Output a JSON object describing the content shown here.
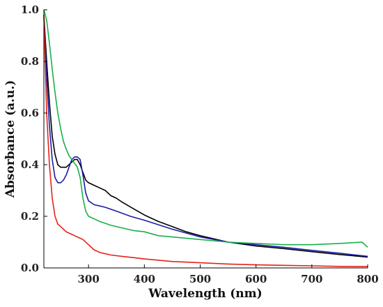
{
  "chart_data": {
    "type": "line",
    "title": "",
    "xlabel": "Wavelength (nm)",
    "ylabel": "Absorbance (a.u.)",
    "xlim": [
      220,
      800
    ],
    "ylim": [
      0,
      1.0
    ],
    "xticks": [
      300,
      400,
      500,
      600,
      700,
      800
    ],
    "yticks": [
      0.0,
      0.2,
      0.4,
      0.6,
      0.8,
      1.0
    ],
    "xtick_labels": [
      "300",
      "400",
      "500",
      "600",
      "700",
      "800"
    ],
    "ytick_labels": [
      "0.0",
      "0.2",
      "0.4",
      "0.6",
      "0.8",
      "1.0"
    ],
    "grid": false,
    "legend": "none",
    "series": [
      {
        "color": "#000000",
        "x": [
          220,
          225,
          230,
          235,
          240,
          245,
          250,
          255,
          260,
          265,
          270,
          275,
          280,
          285,
          290,
          295,
          300,
          310,
          320,
          330,
          340,
          350,
          360,
          380,
          400,
          425,
          450,
          475,
          500,
          550,
          600,
          650,
          700,
          750,
          800
        ],
        "y": [
          0.98,
          0.8,
          0.64,
          0.51,
          0.44,
          0.4,
          0.39,
          0.39,
          0.39,
          0.4,
          0.41,
          0.42,
          0.42,
          0.4,
          0.37,
          0.34,
          0.33,
          0.32,
          0.31,
          0.3,
          0.28,
          0.27,
          0.255,
          0.23,
          0.205,
          0.18,
          0.16,
          0.14,
          0.125,
          0.1,
          0.085,
          0.075,
          0.063,
          0.052,
          0.042
        ]
      },
      {
        "color": "#1c1ca8",
        "x": [
          220,
          225,
          230,
          235,
          240,
          245,
          250,
          255,
          260,
          265,
          270,
          275,
          280,
          285,
          290,
          295,
          300,
          310,
          320,
          330,
          350,
          375,
          400,
          450,
          500,
          550,
          600,
          650,
          700,
          750,
          800
        ],
        "y": [
          0.97,
          0.74,
          0.55,
          0.42,
          0.35,
          0.33,
          0.33,
          0.34,
          0.36,
          0.39,
          0.42,
          0.43,
          0.43,
          0.42,
          0.36,
          0.29,
          0.26,
          0.245,
          0.24,
          0.235,
          0.22,
          0.2,
          0.185,
          0.15,
          0.12,
          0.1,
          0.09,
          0.08,
          0.068,
          0.057,
          0.045
        ]
      },
      {
        "color": "#18b04a",
        "x": [
          220,
          225,
          230,
          235,
          240,
          245,
          250,
          255,
          260,
          265,
          270,
          275,
          280,
          285,
          290,
          295,
          300,
          310,
          320,
          340,
          360,
          380,
          400,
          425,
          450,
          500,
          550,
          600,
          650,
          700,
          750,
          790,
          800
        ],
        "y": [
          1.0,
          0.96,
          0.87,
          0.77,
          0.68,
          0.6,
          0.54,
          0.49,
          0.46,
          0.435,
          0.42,
          0.405,
          0.39,
          0.35,
          0.27,
          0.22,
          0.2,
          0.19,
          0.18,
          0.165,
          0.155,
          0.145,
          0.14,
          0.125,
          0.12,
          0.11,
          0.1,
          0.095,
          0.09,
          0.09,
          0.095,
          0.1,
          0.08
        ]
      },
      {
        "color": "#e2231a",
        "x": [
          220,
          225,
          230,
          235,
          240,
          245,
          250,
          255,
          260,
          265,
          270,
          275,
          280,
          290,
          300,
          310,
          320,
          340,
          360,
          380,
          400,
          450,
          500,
          550,
          600,
          650,
          700,
          750,
          800
        ],
        "y": [
          0.98,
          0.6,
          0.4,
          0.27,
          0.2,
          0.17,
          0.16,
          0.15,
          0.14,
          0.135,
          0.13,
          0.125,
          0.12,
          0.11,
          0.09,
          0.07,
          0.06,
          0.05,
          0.045,
          0.04,
          0.035,
          0.025,
          0.02,
          0.015,
          0.012,
          0.01,
          0.008,
          0.006,
          0.005
        ]
      }
    ]
  }
}
